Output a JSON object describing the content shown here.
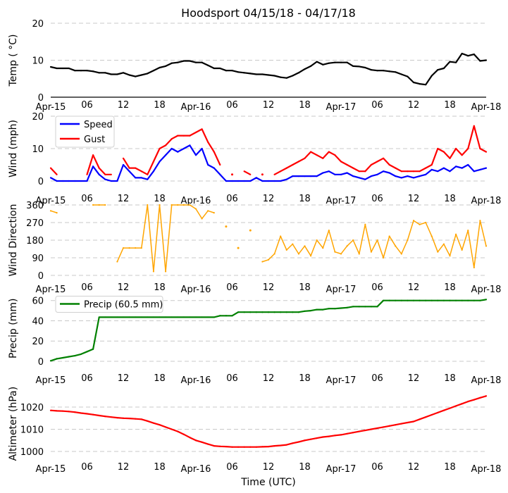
{
  "chart_data": {
    "title": "Hoodsport 04/15/18 - 04/17/18",
    "xlabel": "Time (UTC)",
    "xlim": [
      "2018-04-15 00:00",
      "2018-04-18 00:00"
    ],
    "xtick_labels": [
      "Apr-15",
      "06",
      "12",
      "18",
      "Apr-16",
      "06",
      "12",
      "18",
      "Apr-17",
      "06",
      "12",
      "18",
      "Apr-18"
    ],
    "times": "hourly from 2018-04-15 00:00 to 2018-04-18 00:00",
    "grid": "horizontal dashed",
    "panels": [
      {
        "type": "line",
        "ylabel": "Temp ($^\\circ$C)",
        "ylabel_display": "Temp ( °C)",
        "ylim": [
          0,
          20
        ],
        "yticks": [
          0,
          10,
          20
        ],
        "series": [
          {
            "color": "#000000",
            "values": [
              8.2,
              7.8,
              7.8,
              7.8,
              7.2,
              7.2,
              7.2,
              7.0,
              6.6,
              6.6,
              6.2,
              6.2,
              6.6,
              6.0,
              5.6,
              6.0,
              6.4,
              7.2,
              8.0,
              8.4,
              9.2,
              9.4,
              9.8,
              9.8,
              9.4,
              9.4,
              8.6,
              7.8,
              7.8,
              7.2,
              7.2,
              6.8,
              6.6,
              6.4,
              6.2,
              6.2,
              6.0,
              5.8,
              5.4,
              5.2,
              5.8,
              6.6,
              7.6,
              8.4,
              9.6,
              8.8,
              9.2,
              9.4,
              9.4,
              9.4,
              8.4,
              8.3,
              8.0,
              7.4,
              7.2,
              7.2,
              7.0,
              6.8,
              6.2,
              5.6,
              4.0,
              3.6,
              3.4,
              5.8,
              7.4,
              7.8,
              9.6,
              9.4,
              11.8,
              11.2,
              11.6,
              9.8,
              10.0
            ]
          }
        ]
      },
      {
        "type": "line",
        "ylabel": "Wind (mph)",
        "ylim": [
          0,
          20
        ],
        "yticks": [
          0,
          10,
          20
        ],
        "legend": "upper-left",
        "series": [
          {
            "name": "Speed",
            "color": "#0000ff",
            "values": [
              1,
              0,
              0,
              0,
              0,
              0,
              0,
              4.5,
              2,
              0.5,
              0,
              0,
              5,
              3,
              1,
              1,
              0.5,
              3,
              6,
              8,
              10,
              9,
              10,
              11,
              8,
              10,
              5,
              4,
              2,
              0,
              0,
              0,
              0,
              0,
              1,
              0,
              0,
              0,
              0,
              0.5,
              1.5,
              1.5,
              1.5,
              1.5,
              1.5,
              2.5,
              3,
              2,
              2,
              2.5,
              1.5,
              1,
              0.5,
              1.5,
              2,
              3,
              2.5,
              1.5,
              1,
              1.5,
              1,
              1.5,
              2,
              3.5,
              3,
              4,
              3,
              4.5,
              4,
              5,
              3,
              3.5,
              4
            ]
          },
          {
            "name": "Gust",
            "color": "#ff0000",
            "values": [
              4,
              2,
              null,
              null,
              null,
              null,
              2,
              8,
              4,
              2,
              2,
              null,
              7,
              4,
              4,
              3,
              2,
              6,
              10,
              11,
              13,
              14,
              14,
              14,
              15,
              16,
              12,
              9,
              5,
              null,
              2,
              null,
              3,
              2,
              null,
              2,
              null,
              2,
              3,
              4,
              5,
              6,
              7,
              9,
              8,
              7,
              9,
              8,
              6,
              5,
              4,
              3,
              3,
              5,
              6,
              7,
              5,
              4,
              3,
              3,
              3,
              3,
              4,
              5,
              10,
              9,
              7,
              10,
              8,
              10,
              17,
              10,
              9
            ]
          }
        ]
      },
      {
        "type": "line",
        "ylabel": "Wind Direction",
        "ylim": [
          0,
          360
        ],
        "yticks": [
          0,
          90,
          180,
          270,
          360
        ],
        "series": [
          {
            "color": "#ffa500",
            "values": [
              330,
              320,
              null,
              null,
              null,
              null,
              null,
              360,
              360,
              360,
              null,
              70,
              140,
              140,
              140,
              140,
              360,
              20,
              360,
              20,
              360,
              360,
              360,
              360,
              340,
              290,
              330,
              320,
              null,
              250,
              null,
              140,
              null,
              230,
              null,
              70,
              80,
              110,
              200,
              130,
              160,
              110,
              150,
              100,
              180,
              140,
              230,
              120,
              110,
              150,
              180,
              110,
              260,
              120,
              180,
              90,
              200,
              150,
              110,
              180,
              280,
              260,
              270,
              200,
              120,
              160,
              100,
              210,
              130,
              230,
              40,
              280,
              150
            ]
          }
        ]
      },
      {
        "type": "line",
        "ylabel": "Precip (mm)",
        "ylim": [
          0,
          65
        ],
        "yticks": [
          0,
          20,
          40,
          60
        ],
        "legend": "upper-left",
        "series": [
          {
            "name": "Precip (60.5 mm)",
            "color": "#008000",
            "values": [
              0.5,
              2.5,
              3.5,
              4.5,
              5.5,
              7,
              9.5,
              12,
              43.5,
              43.5,
              43.5,
              43.5,
              43.5,
              43.5,
              43.5,
              43.5,
              43.5,
              43.5,
              43.5,
              43.5,
              43.5,
              43.5,
              43.5,
              43.5,
              43.5,
              43.5,
              43.5,
              43.5,
              45,
              45,
              45,
              48.5,
              48.5,
              48.5,
              48.5,
              48.5,
              48.5,
              48.5,
              48.5,
              48.5,
              48.5,
              48.5,
              49.5,
              50,
              51,
              51,
              52,
              52,
              52.5,
              53,
              54,
              54,
              54,
              54,
              54,
              60,
              60,
              60,
              60,
              60,
              60,
              60,
              60,
              60,
              60,
              60,
              60,
              60,
              60,
              60,
              60,
              60,
              61
            ]
          }
        ]
      },
      {
        "type": "line",
        "ylabel": "Altimeter (hPa)",
        "ylim": [
          997,
          1028
        ],
        "yticks": [
          1000,
          1010,
          1020
        ],
        "series": [
          {
            "color": "#ff0000",
            "values": [
              1018.5,
              1018.3,
              1018.2,
              1018,
              1017.7,
              1017.3,
              1017,
              1016.6,
              1016.2,
              1015.8,
              1015.5,
              1015.2,
              1015,
              1014.9,
              1014.7,
              1014.5,
              1013.7,
              1012.8,
              1012,
              1011,
              1010,
              1009,
              1007.7,
              1006.3,
              1005,
              1004.2,
              1003.3,
              1002.5,
              1002.3,
              1002.2,
              1002,
              1002,
              1002,
              1002,
              1002,
              1002.1,
              1002.2,
              1002.5,
              1002.7,
              1003,
              1003.7,
              1004.3,
              1005,
              1005.5,
              1006,
              1006.5,
              1006.8,
              1007.2,
              1007.5,
              1008,
              1008.5,
              1009,
              1009.5,
              1010,
              1010.5,
              1011,
              1011.5,
              1012,
              1012.5,
              1013,
              1013.5,
              1014.5,
              1015.5,
              1016.5,
              1017.5,
              1018.5,
              1019.5,
              1020.5,
              1021.5,
              1022.5,
              1023.3,
              1024.2,
              1025
            ]
          }
        ]
      }
    ]
  }
}
